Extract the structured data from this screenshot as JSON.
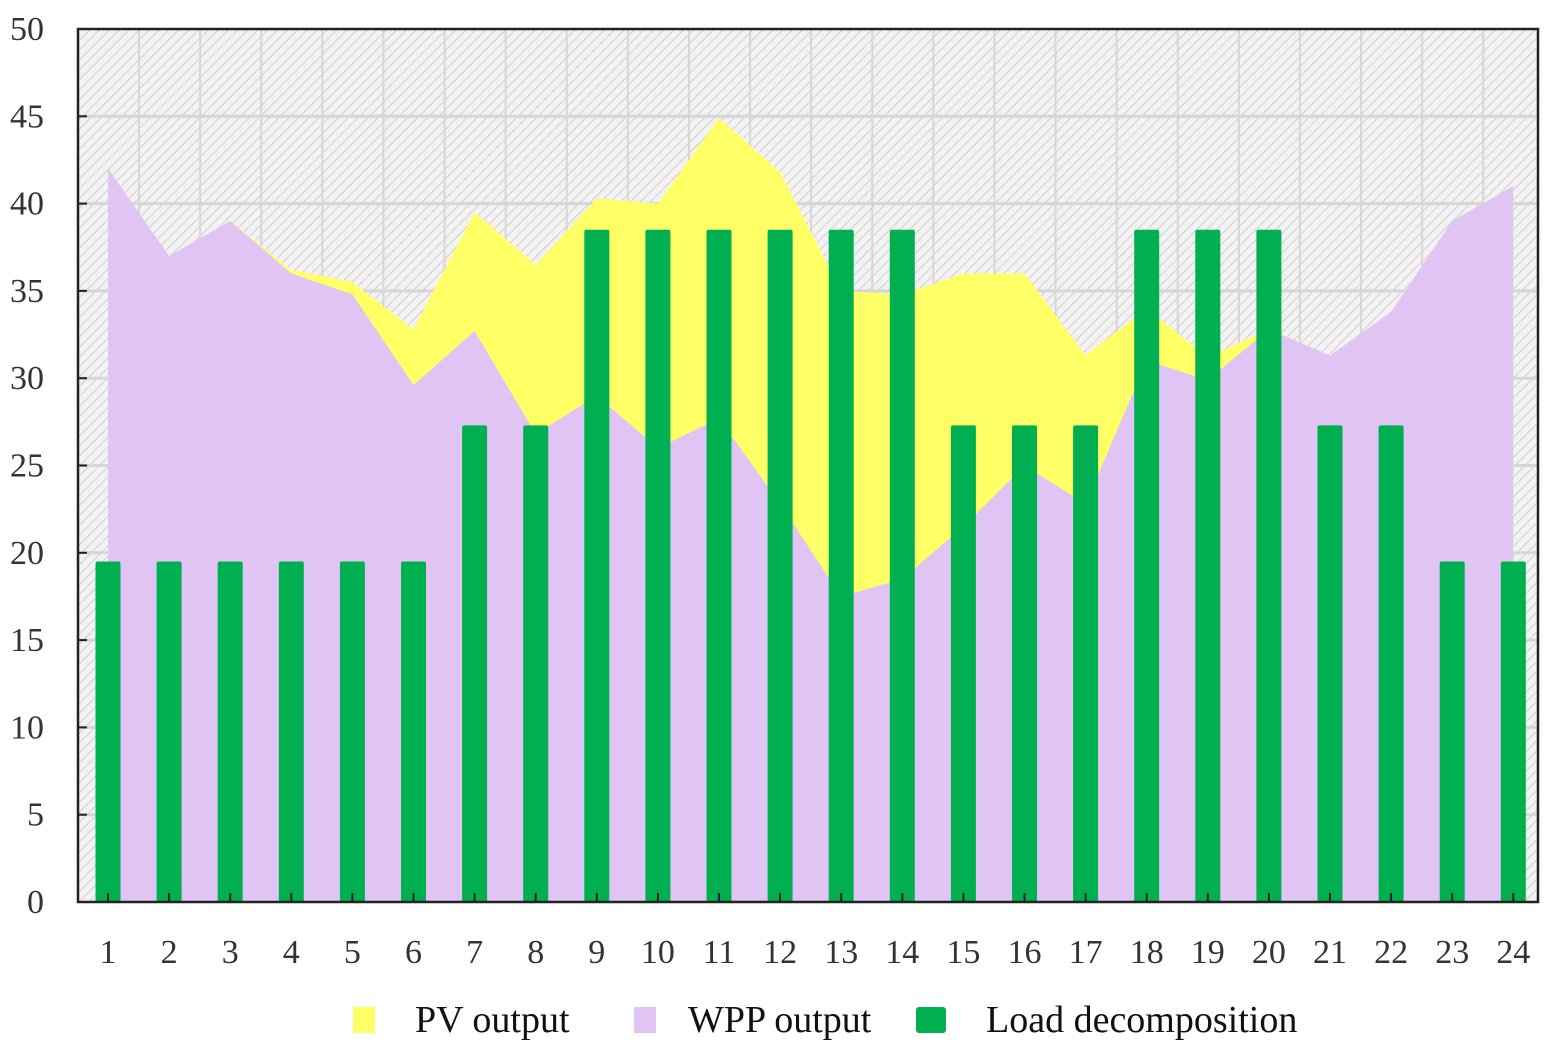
{
  "chart_data": {
    "type": "area",
    "title": "",
    "xlabel": "",
    "ylabel": "",
    "ylim": [
      0,
      50
    ],
    "yticks": [
      0,
      5,
      10,
      15,
      20,
      25,
      30,
      35,
      40,
      45,
      50
    ],
    "grid": true,
    "legend_position": "bottom",
    "categories": [
      "1",
      "2",
      "3",
      "4",
      "5",
      "6",
      "7",
      "8",
      "9",
      "10",
      "11",
      "12",
      "13",
      "14",
      "15",
      "16",
      "17",
      "18",
      "19",
      "20",
      "21",
      "22",
      "23",
      "24"
    ],
    "series": [
      {
        "name": "PV output",
        "kind": "area",
        "color": "#ffff66",
        "values": [
          42,
          37,
          39,
          36.2,
          35.5,
          32.8,
          39.5,
          36.5,
          40.3,
          40,
          44.9,
          41.8,
          35,
          34.8,
          36,
          36,
          31.3,
          34,
          31.2,
          32.8,
          31.3,
          33.8,
          39,
          41
        ]
      },
      {
        "name": "WPP output",
        "kind": "area",
        "color": "#e0c4f4",
        "values": [
          42,
          37,
          39,
          36,
          34.8,
          29.6,
          32.7,
          26.8,
          29,
          26,
          27.7,
          22.8,
          17.5,
          18.5,
          21.5,
          25,
          22.8,
          31,
          29.9,
          32.8,
          31.3,
          33.8,
          39,
          41
        ]
      },
      {
        "name": "Load decomposition",
        "kind": "bar",
        "color": "#00b050",
        "values": [
          19.5,
          19.5,
          19.5,
          19.5,
          19.5,
          19.5,
          27.3,
          27.3,
          38.5,
          38.5,
          38.5,
          38.5,
          38.5,
          38.5,
          27.3,
          27.3,
          27.3,
          38.5,
          38.5,
          38.5,
          27.3,
          27.3,
          19.5,
          19.5
        ]
      }
    ]
  }
}
